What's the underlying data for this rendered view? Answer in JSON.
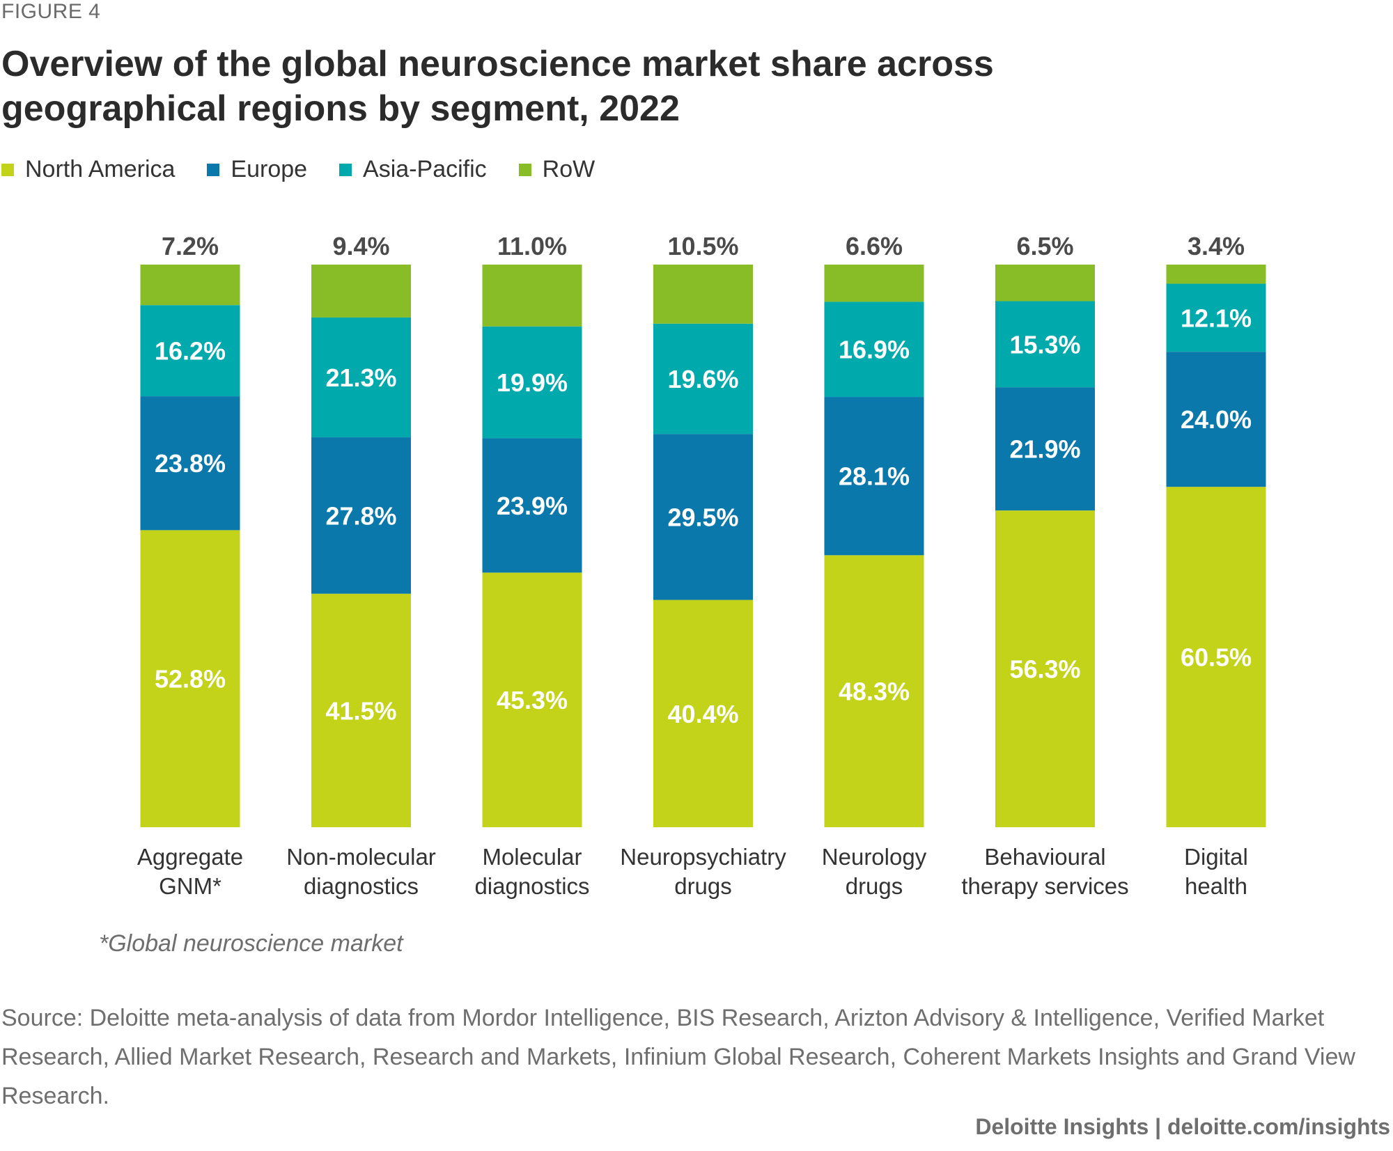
{
  "figure_label": "FIGURE 4",
  "chart_data": {
    "type": "bar",
    "stacked": true,
    "title": "Overview of the global neuroscience market share across geographical regions by segment, 2022",
    "categories": [
      [
        "Aggregate",
        "GNM*"
      ],
      [
        "Non-molecular",
        "diagnostics"
      ],
      [
        "Molecular",
        "diagnostics"
      ],
      [
        "Neuropsychiatry",
        "drugs"
      ],
      [
        "Neurology",
        "drugs"
      ],
      [
        "Behavioural",
        "therapy services"
      ],
      [
        "Digital",
        "health"
      ]
    ],
    "series": [
      {
        "name": "North America",
        "color": "#c2d319",
        "values": [
          52.8,
          41.5,
          45.3,
          40.4,
          48.3,
          56.3,
          60.5
        ]
      },
      {
        "name": "Europe",
        "color": "#0a78ab",
        "values": [
          23.8,
          27.8,
          23.9,
          29.5,
          28.1,
          21.9,
          24.0
        ]
      },
      {
        "name": "Asia-Pacific",
        "color": "#00aaac",
        "values": [
          16.2,
          21.3,
          19.9,
          19.6,
          16.9,
          15.3,
          12.1
        ]
      },
      {
        "name": "RoW",
        "color": "#88bd28",
        "values": [
          7.2,
          9.4,
          11.0,
          10.5,
          6.6,
          6.5,
          3.4
        ]
      }
    ],
    "ylim": [
      0,
      100
    ],
    "xlabel": "",
    "ylabel": "",
    "legend_position": "top-left"
  },
  "note": "*Global neuroscience market",
  "source": "Source: Deloitte meta-analysis of data from Mordor Intelligence, BIS Research, Arizton Advisory & Intelligence, Verified Market Research, Allied Market Research, Research and Markets, Infinium Global Research, Coherent Markets Insights and Grand View Research.",
  "footer": "Deloitte Insights | deloitte.com/insights"
}
